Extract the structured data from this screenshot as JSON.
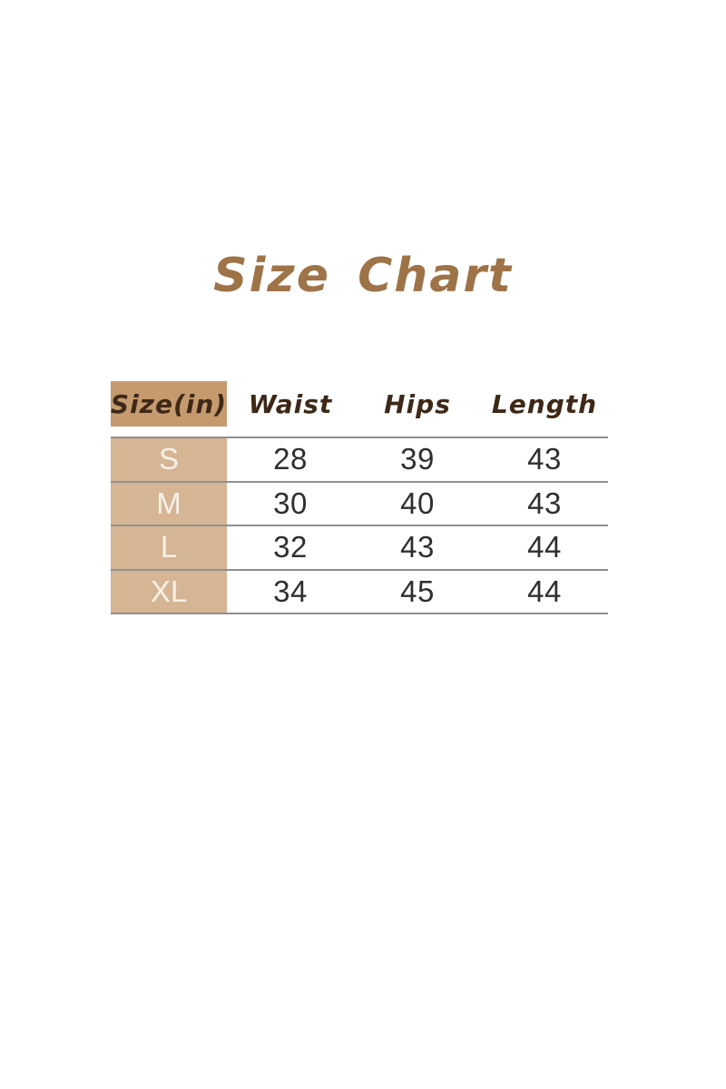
{
  "title": {
    "text": "Size Chart"
  },
  "chart_data": {
    "type": "table",
    "title": "Size Chart",
    "unit": "inches",
    "columns": [
      "Size(in)",
      "Waist",
      "Hips",
      "Length"
    ],
    "rows": [
      [
        "S",
        "28",
        "39",
        "43"
      ],
      [
        "M",
        "30",
        "40",
        "43"
      ],
      [
        "L",
        "32",
        "43",
        "44"
      ],
      [
        "XL",
        "34",
        "45",
        "44"
      ]
    ]
  },
  "colors": {
    "title_text": "#9e7347",
    "header_text": "#3e2817",
    "header_cell_bg": "#c59a6e",
    "row_label_bg": "#d6b594",
    "row_label_text": "#f7f1e8",
    "value_text": "#2f2f2f",
    "divider": "#8f8f8f",
    "page_bg": "#ffffff"
  }
}
